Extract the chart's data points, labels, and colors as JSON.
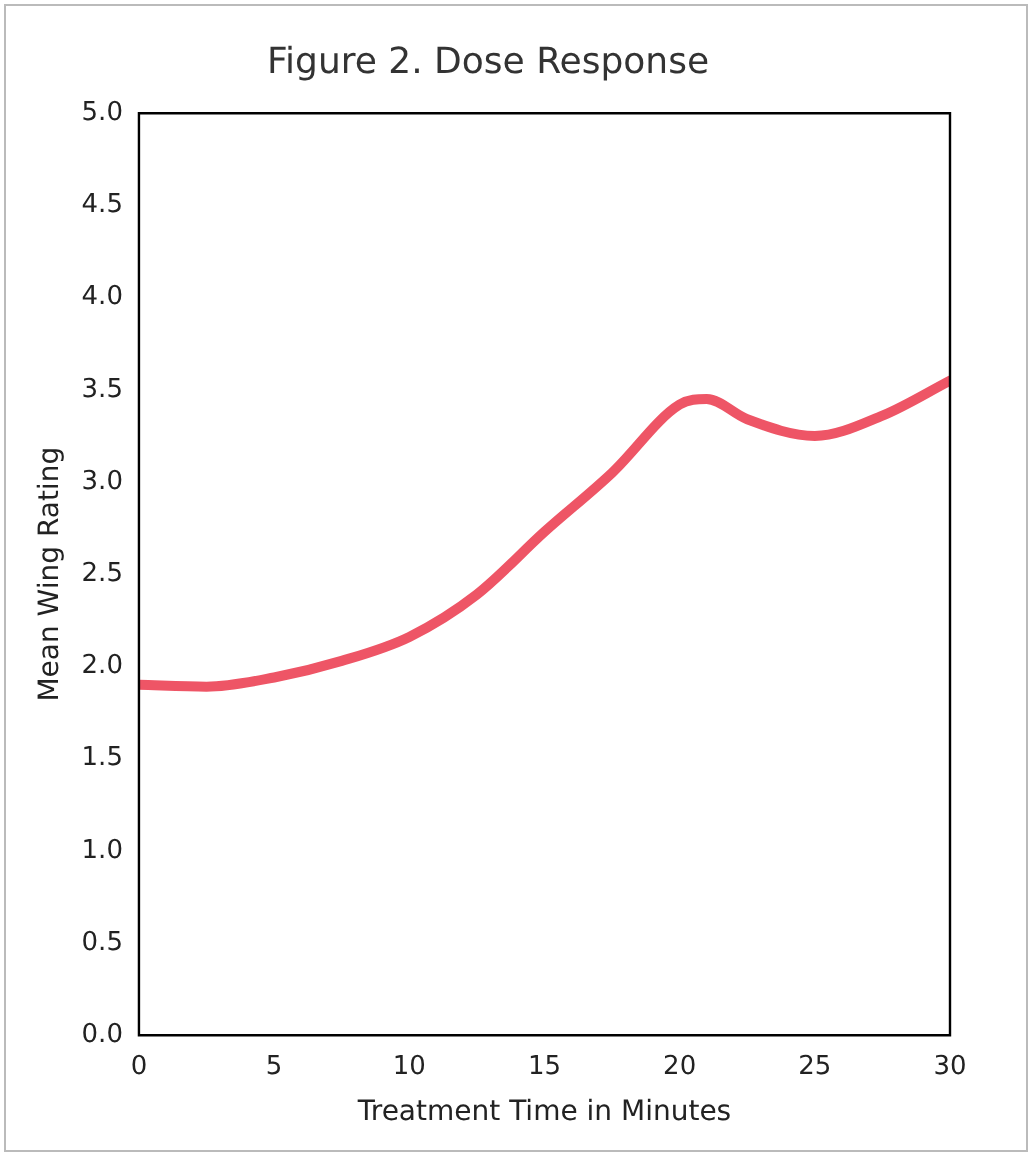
{
  "chart_data": {
    "type": "line",
    "title": "Figure 2. Dose Response",
    "xlabel": "Treatment Time in Minutes",
    "ylabel": "Mean Wing Rating",
    "x": [
      0,
      2.5,
      5,
      7.5,
      10,
      12.5,
      15,
      17.5,
      20,
      21,
      22.5,
      25,
      27.5,
      30
    ],
    "series": [
      {
        "color": "#ee5566",
        "values": [
          1.9,
          1.89,
          1.94,
          2.03,
          2.16,
          2.39,
          2.73,
          3.05,
          3.42,
          3.45,
          3.34,
          3.25,
          3.36,
          3.55
        ]
      }
    ],
    "xlim": [
      0,
      30
    ],
    "xticks": [
      0,
      5,
      10,
      15,
      20,
      25,
      30
    ],
    "ylim": [
      0,
      5
    ],
    "yticks": [
      {
        "value": 0,
        "label": "0.0"
      },
      0.5,
      {
        "value": 1,
        "label": "1.0"
      },
      1.5,
      {
        "value": 2,
        "label": "2.0"
      },
      2.5,
      {
        "value": 3,
        "label": "3.0"
      },
      3.5,
      {
        "value": 4,
        "label": "4.0"
      },
      4.5,
      {
        "value": 5,
        "label": "5.0"
      }
    ],
    "grid": false,
    "legend": false,
    "marker": "none",
    "line_style": "solid"
  }
}
